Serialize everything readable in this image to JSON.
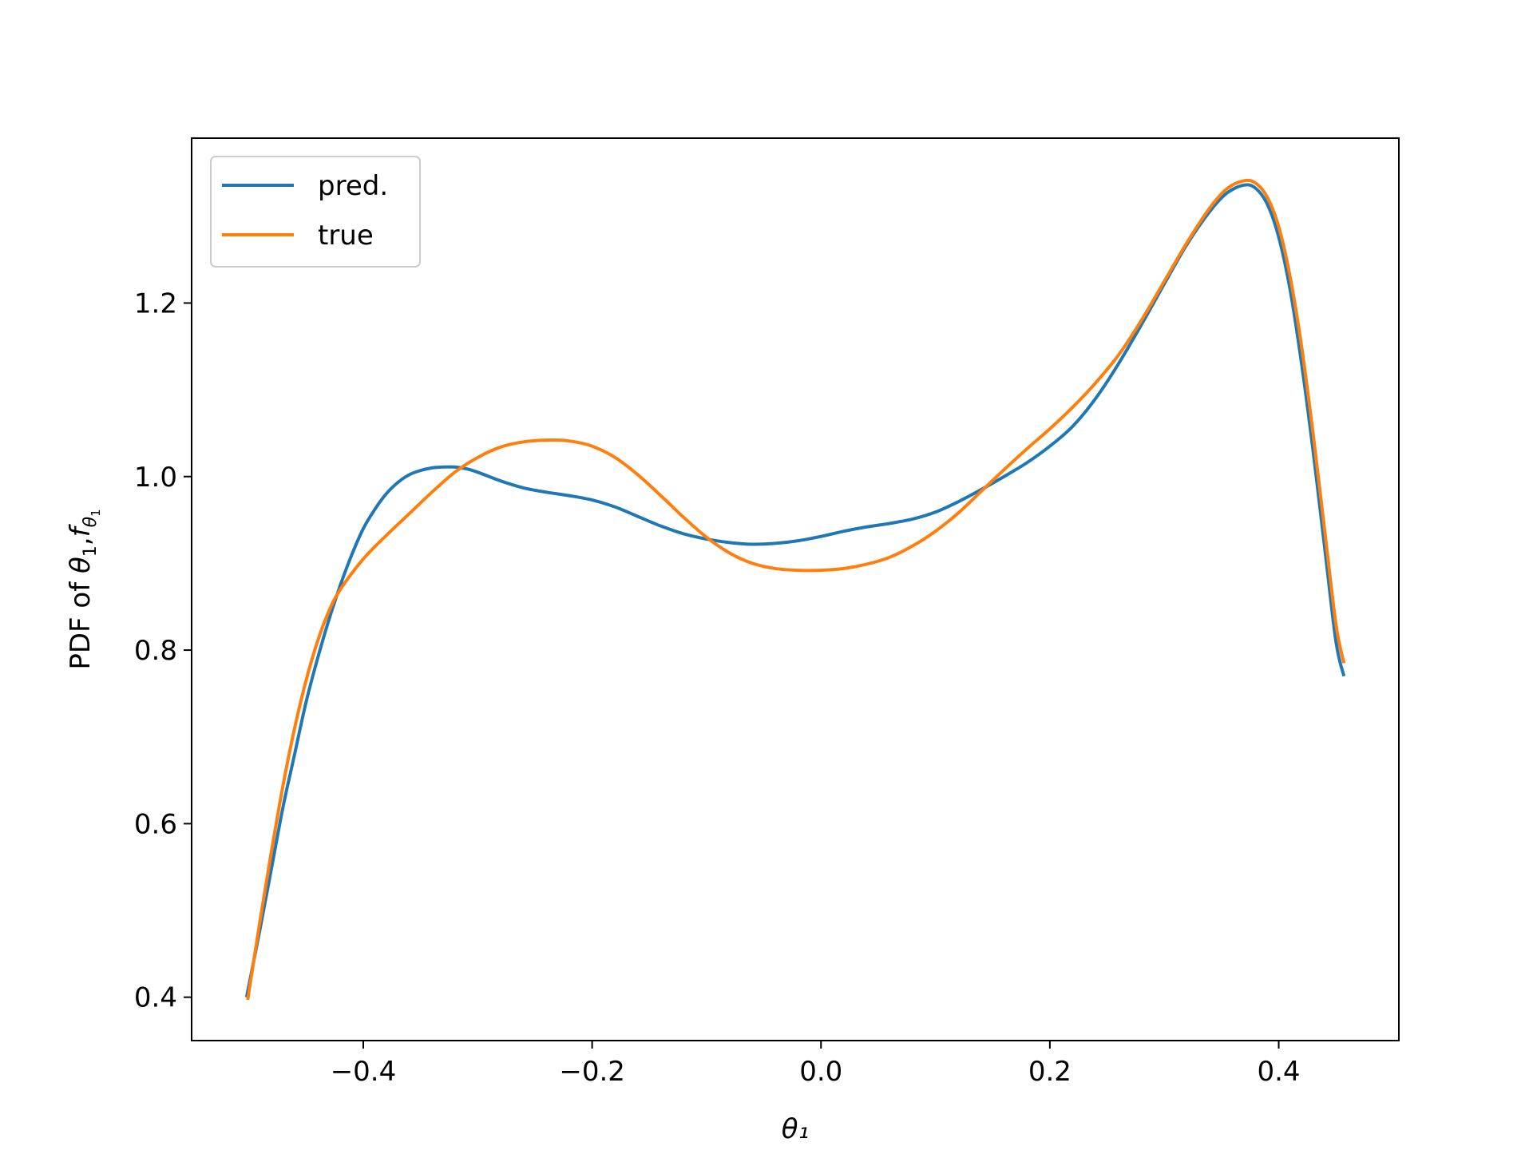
{
  "chart_data": {
    "type": "line",
    "title": "",
    "xlabel": "θ₁",
    "ylabel": {
      "prefix": "PDF of ",
      "theta": "θ",
      "theta_sub": "1",
      "sep": ",",
      "f": "f",
      "f_sub_theta": "θ",
      "f_sub_sub": "1"
    },
    "xlim": [
      -0.55,
      0.505
    ],
    "ylim": [
      0.35,
      1.39
    ],
    "xticks": [
      -0.4,
      -0.2,
      0.0,
      0.2,
      0.4
    ],
    "xtick_labels": [
      "−0.4",
      "−0.2",
      "0.0",
      "0.2",
      "0.4"
    ],
    "yticks": [
      0.4,
      0.6,
      0.8,
      1.0,
      1.2
    ],
    "ytick_labels": [
      "0.4",
      "0.6",
      "0.8",
      "1.0",
      "1.2"
    ],
    "grid": false,
    "legend_position": "upper left",
    "series": [
      {
        "name": "pred.",
        "color": "#1f77b4",
        "points": [
          [
            -0.502,
            0.4
          ],
          [
            -0.49,
            0.48
          ],
          [
            -0.48,
            0.55
          ],
          [
            -0.47,
            0.62
          ],
          [
            -0.46,
            0.68
          ],
          [
            -0.45,
            0.74
          ],
          [
            -0.44,
            0.79
          ],
          [
            -0.43,
            0.835
          ],
          [
            -0.42,
            0.875
          ],
          [
            -0.41,
            0.91
          ],
          [
            -0.4,
            0.94
          ],
          [
            -0.39,
            0.962
          ],
          [
            -0.38,
            0.98
          ],
          [
            -0.37,
            0.993
          ],
          [
            -0.36,
            1.002
          ],
          [
            -0.35,
            1.007
          ],
          [
            -0.34,
            1.01
          ],
          [
            -0.33,
            1.011
          ],
          [
            -0.32,
            1.011
          ],
          [
            -0.31,
            1.009
          ],
          [
            -0.3,
            1.005
          ],
          [
            -0.28,
            0.995
          ],
          [
            -0.26,
            0.987
          ],
          [
            -0.24,
            0.982
          ],
          [
            -0.22,
            0.978
          ],
          [
            -0.2,
            0.973
          ],
          [
            -0.18,
            0.965
          ],
          [
            -0.16,
            0.954
          ],
          [
            -0.14,
            0.943
          ],
          [
            -0.12,
            0.934
          ],
          [
            -0.1,
            0.928
          ],
          [
            -0.08,
            0.924
          ],
          [
            -0.06,
            0.922
          ],
          [
            -0.04,
            0.923
          ],
          [
            -0.02,
            0.926
          ],
          [
            0.0,
            0.931
          ],
          [
            0.02,
            0.937
          ],
          [
            0.04,
            0.942
          ],
          [
            0.06,
            0.946
          ],
          [
            0.08,
            0.951
          ],
          [
            0.1,
            0.959
          ],
          [
            0.12,
            0.971
          ],
          [
            0.14,
            0.985
          ],
          [
            0.16,
            1.0
          ],
          [
            0.18,
            1.016
          ],
          [
            0.2,
            1.035
          ],
          [
            0.22,
            1.058
          ],
          [
            0.24,
            1.09
          ],
          [
            0.26,
            1.13
          ],
          [
            0.28,
            1.175
          ],
          [
            0.3,
            1.222
          ],
          [
            0.32,
            1.268
          ],
          [
            0.34,
            1.306
          ],
          [
            0.355,
            1.327
          ],
          [
            0.37,
            1.336
          ],
          [
            0.38,
            1.332
          ],
          [
            0.39,
            1.314
          ],
          [
            0.4,
            1.276
          ],
          [
            0.41,
            1.215
          ],
          [
            0.42,
            1.13
          ],
          [
            0.43,
            1.03
          ],
          [
            0.44,
            0.92
          ],
          [
            0.45,
            0.81
          ],
          [
            0.457,
            0.77
          ]
        ]
      },
      {
        "name": "true",
        "color": "#ff7f0e",
        "points": [
          [
            -0.501,
            0.397
          ],
          [
            -0.49,
            0.49
          ],
          [
            -0.48,
            0.57
          ],
          [
            -0.47,
            0.645
          ],
          [
            -0.46,
            0.71
          ],
          [
            -0.45,
            0.765
          ],
          [
            -0.44,
            0.81
          ],
          [
            -0.43,
            0.845
          ],
          [
            -0.42,
            0.87
          ],
          [
            -0.4,
            0.905
          ],
          [
            -0.38,
            0.932
          ],
          [
            -0.36,
            0.957
          ],
          [
            -0.34,
            0.982
          ],
          [
            -0.32,
            1.005
          ],
          [
            -0.3,
            1.022
          ],
          [
            -0.28,
            1.034
          ],
          [
            -0.26,
            1.04
          ],
          [
            -0.24,
            1.042
          ],
          [
            -0.22,
            1.041
          ],
          [
            -0.2,
            1.035
          ],
          [
            -0.18,
            1.022
          ],
          [
            -0.16,
            1.002
          ],
          [
            -0.14,
            0.978
          ],
          [
            -0.12,
            0.953
          ],
          [
            -0.1,
            0.93
          ],
          [
            -0.08,
            0.912
          ],
          [
            -0.06,
            0.9
          ],
          [
            -0.04,
            0.894
          ],
          [
            -0.02,
            0.892
          ],
          [
            0.0,
            0.892
          ],
          [
            0.02,
            0.894
          ],
          [
            0.04,
            0.899
          ],
          [
            0.06,
            0.907
          ],
          [
            0.08,
            0.92
          ],
          [
            0.1,
            0.937
          ],
          [
            0.12,
            0.958
          ],
          [
            0.14,
            0.983
          ],
          [
            0.16,
            1.008
          ],
          [
            0.18,
            1.032
          ],
          [
            0.2,
            1.055
          ],
          [
            0.22,
            1.08
          ],
          [
            0.24,
            1.108
          ],
          [
            0.26,
            1.14
          ],
          [
            0.28,
            1.18
          ],
          [
            0.3,
            1.225
          ],
          [
            0.32,
            1.27
          ],
          [
            0.34,
            1.31
          ],
          [
            0.355,
            1.332
          ],
          [
            0.37,
            1.341
          ],
          [
            0.38,
            1.338
          ],
          [
            0.39,
            1.322
          ],
          [
            0.4,
            1.288
          ],
          [
            0.41,
            1.23
          ],
          [
            0.42,
            1.15
          ],
          [
            0.43,
            1.05
          ],
          [
            0.44,
            0.94
          ],
          [
            0.45,
            0.83
          ],
          [
            0.457,
            0.785
          ]
        ]
      }
    ]
  }
}
